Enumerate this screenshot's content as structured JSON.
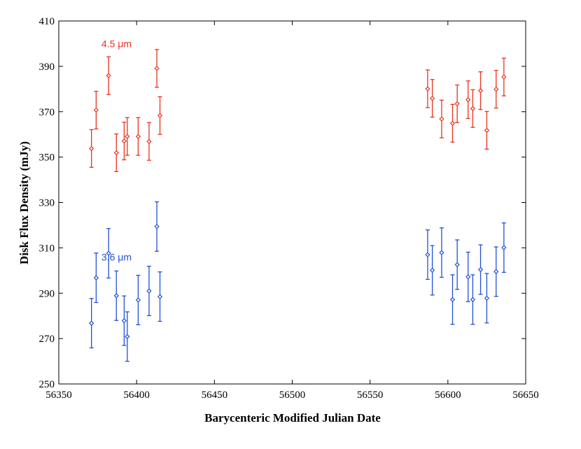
{
  "chart_data": {
    "type": "scatter",
    "title": "",
    "xlabel": "Barycenteric Modified Julian Date",
    "ylabel": "Disk Flux Density (mJy)",
    "xlim": [
      56350,
      56650
    ],
    "ylim": [
      250,
      410
    ],
    "x_ticks": [
      56350,
      56400,
      56450,
      56500,
      56550,
      56600,
      56650
    ],
    "y_ticks": [
      250,
      270,
      290,
      310,
      330,
      350,
      370,
      390,
      410
    ],
    "grid": false,
    "legend": "none",
    "series": [
      {
        "name": "4.5 μm",
        "color": "#e8321e",
        "label_pos": [
          56372,
          400
        ],
        "points": [
          {
            "x": 56371,
            "y": 353.8,
            "err": 8.3
          },
          {
            "x": 56374,
            "y": 370.7,
            "err": 8.3
          },
          {
            "x": 56382,
            "y": 385.9,
            "err": 8.3
          },
          {
            "x": 56387,
            "y": 351.9,
            "err": 8.3
          },
          {
            "x": 56392,
            "y": 357.1,
            "err": 8.3
          },
          {
            "x": 56394,
            "y": 359.1,
            "err": 8.3
          },
          {
            "x": 56401,
            "y": 359.1,
            "err": 8.3
          },
          {
            "x": 56408,
            "y": 356.9,
            "err": 8.3
          },
          {
            "x": 56413,
            "y": 389.1,
            "err": 8.3
          },
          {
            "x": 56415,
            "y": 368.3,
            "err": 8.3
          },
          {
            "x": 56587,
            "y": 380.1,
            "err": 8.3
          },
          {
            "x": 56590,
            "y": 375.9,
            "err": 8.3
          },
          {
            "x": 56596,
            "y": 366.8,
            "err": 8.3
          },
          {
            "x": 56603,
            "y": 364.9,
            "err": 8.3
          },
          {
            "x": 56606,
            "y": 373.5,
            "err": 8.3
          },
          {
            "x": 56613,
            "y": 375.3,
            "err": 8.3
          },
          {
            "x": 56616,
            "y": 371.4,
            "err": 8.3
          },
          {
            "x": 56621,
            "y": 379.3,
            "err": 8.3
          },
          {
            "x": 56625,
            "y": 361.8,
            "err": 8.3
          },
          {
            "x": 56631,
            "y": 379.9,
            "err": 8.3
          },
          {
            "x": 56636,
            "y": 385.3,
            "err": 8.3
          }
        ]
      },
      {
        "name": "3.6 μm",
        "color": "#2050d8",
        "label_pos": [
          56372,
          306
        ],
        "points": [
          {
            "x": 56371,
            "y": 276.8,
            "err": 10.9
          },
          {
            "x": 56374,
            "y": 296.8,
            "err": 10.9
          },
          {
            "x": 56382,
            "y": 307.6,
            "err": 10.9
          },
          {
            "x": 56387,
            "y": 288.9,
            "err": 10.9
          },
          {
            "x": 56392,
            "y": 277.9,
            "err": 10.9
          },
          {
            "x": 56394,
            "y": 270.9,
            "err": 10.9
          },
          {
            "x": 56401,
            "y": 287.0,
            "err": 10.9
          },
          {
            "x": 56408,
            "y": 291.0,
            "err": 10.9
          },
          {
            "x": 56413,
            "y": 319.4,
            "err": 10.9
          },
          {
            "x": 56415,
            "y": 288.5,
            "err": 10.9
          },
          {
            "x": 56587,
            "y": 307.0,
            "err": 10.9
          },
          {
            "x": 56590,
            "y": 300.1,
            "err": 10.9
          },
          {
            "x": 56596,
            "y": 307.9,
            "err": 10.9
          },
          {
            "x": 56603,
            "y": 287.2,
            "err": 10.9
          },
          {
            "x": 56606,
            "y": 302.6,
            "err": 10.9
          },
          {
            "x": 56613,
            "y": 297.2,
            "err": 10.9
          },
          {
            "x": 56616,
            "y": 287.2,
            "err": 10.9
          },
          {
            "x": 56621,
            "y": 300.4,
            "err": 10.9
          },
          {
            "x": 56625,
            "y": 287.8,
            "err": 10.9
          },
          {
            "x": 56631,
            "y": 299.5,
            "err": 10.9
          },
          {
            "x": 56636,
            "y": 310.1,
            "err": 10.9
          }
        ]
      }
    ]
  }
}
